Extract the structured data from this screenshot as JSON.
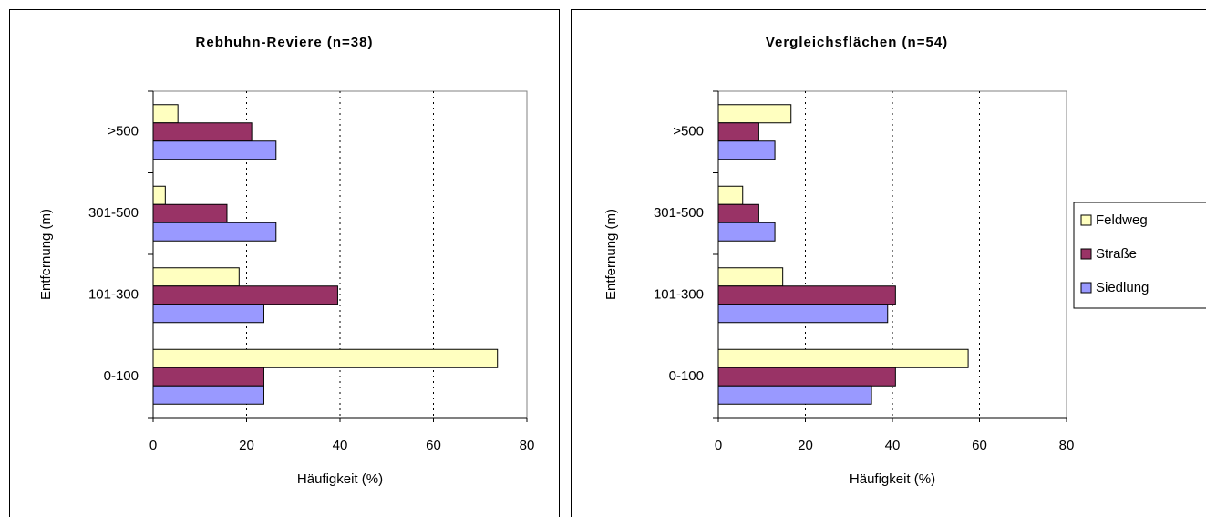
{
  "chart_data": [
    {
      "type": "bar",
      "orientation": "horizontal",
      "title": "Rebhuhn-Reviere (n=38)",
      "x_label": "Häufigkeit (%)",
      "y_label": "Entfernung (m)",
      "categories": [
        "0-100",
        "101-300",
        "301-500",
        ">500"
      ],
      "series": [
        {
          "name": "Feldweg",
          "color": "#ffffc0",
          "values": [
            73.7,
            18.4,
            2.6,
            5.3
          ]
        },
        {
          "name": "Straße",
          "color": "#993366",
          "values": [
            23.7,
            39.5,
            15.8,
            21.1
          ]
        },
        {
          "name": "Siedlung",
          "color": "#9999ff",
          "values": [
            23.7,
            23.7,
            26.3,
            26.3
          ]
        }
      ],
      "xlim": [
        0,
        80
      ],
      "xticks": [
        0,
        20,
        40,
        60,
        80
      ],
      "grid": true,
      "legend": false
    },
    {
      "type": "bar",
      "orientation": "horizontal",
      "title": "Vergleichsflächen (n=54)",
      "x_label": "Häufigkeit (%)",
      "y_label": "Entfernung (m)",
      "categories": [
        "0-100",
        "101-300",
        "301-500",
        ">500"
      ],
      "series": [
        {
          "name": "Feldweg",
          "color": "#ffffc0",
          "values": [
            57.4,
            14.8,
            5.6,
            16.7
          ]
        },
        {
          "name": "Straße",
          "color": "#993366",
          "values": [
            40.7,
            40.7,
            9.3,
            9.3
          ]
        },
        {
          "name": "Siedlung",
          "color": "#9999ff",
          "values": [
            35.2,
            38.9,
            13.0,
            13.0
          ]
        }
      ],
      "xlim": [
        0,
        80
      ],
      "xticks": [
        0,
        20,
        40,
        60,
        80
      ],
      "grid": true,
      "legend": "right"
    }
  ]
}
